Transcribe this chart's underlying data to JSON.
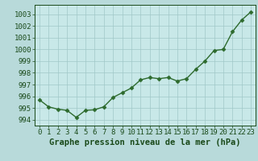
{
  "x": [
    0,
    1,
    2,
    3,
    4,
    5,
    6,
    7,
    8,
    9,
    10,
    11,
    12,
    13,
    14,
    15,
    16,
    17,
    18,
    19,
    20,
    21,
    22,
    23
  ],
  "y": [
    995.7,
    995.1,
    994.9,
    994.8,
    994.2,
    994.8,
    994.85,
    995.1,
    995.9,
    996.3,
    996.7,
    997.4,
    997.6,
    997.5,
    997.6,
    997.3,
    997.5,
    998.3,
    999.0,
    999.9,
    1000.0,
    1001.5,
    1002.5,
    1003.2
  ],
  "line_color": "#2d6a2d",
  "marker": "D",
  "marker_size": 2.5,
  "line_width": 1.0,
  "bg_color": "#b8dada",
  "plot_bg_color": "#c8e8e8",
  "grid_color": "#a0c8c8",
  "xlabel": "Graphe pression niveau de la mer (hPa)",
  "xlabel_fontsize": 7.5,
  "xlabel_color": "#1a4a1a",
  "tick_color": "#1a4a1a",
  "tick_fontsize": 6.5,
  "ytick_fontsize": 6.5,
  "ylim": [
    993.5,
    1003.8
  ],
  "xlim": [
    -0.5,
    23.5
  ],
  "yticks": [
    994,
    995,
    996,
    997,
    998,
    999,
    1000,
    1001,
    1002,
    1003
  ],
  "xticks": [
    0,
    1,
    2,
    3,
    4,
    5,
    6,
    7,
    8,
    9,
    10,
    11,
    12,
    13,
    14,
    15,
    16,
    17,
    18,
    19,
    20,
    21,
    22,
    23
  ]
}
